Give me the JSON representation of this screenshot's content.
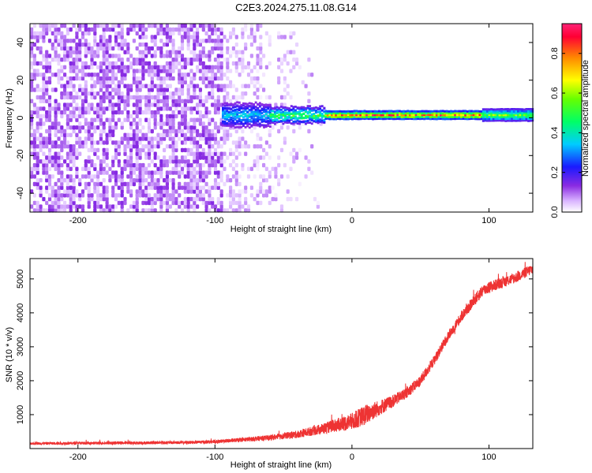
{
  "title": "C2E3.2024.275.11.08.G14",
  "chart_data": [
    {
      "type": "heatmap",
      "xlabel": "Height of straight line (km)",
      "ylabel": "Frequency (Hz)",
      "xlim": [
        -235,
        132
      ],
      "ylim": [
        -50,
        50
      ],
      "xticks": [
        -200,
        -100,
        0,
        100
      ],
      "yticks": [
        -40,
        -20,
        0,
        20,
        40
      ],
      "colorbar": {
        "label": "Normalized spectral amplitude",
        "range": [
          0,
          0.95
        ],
        "ticks": [
          0.0,
          0.2,
          0.4,
          0.6,
          0.8
        ],
        "tick_labels": [
          "0.0",
          "0.2",
          "0.4",
          "0.6",
          "0.8"
        ]
      },
      "noise_region": {
        "x_start": -235,
        "x_end": -20,
        "density_boundary": -95
      },
      "signal_band": {
        "center_frequency": 1.5,
        "x_start": -95,
        "x_end": 132,
        "segments": [
          {
            "x_from": -95,
            "x_to": -60,
            "half_width": 6,
            "amplitude": 0.25
          },
          {
            "x_from": -60,
            "x_to": -20,
            "half_width": 4,
            "amplitude": 0.4
          },
          {
            "x_from": -20,
            "x_to": 95,
            "half_width": 2,
            "amplitude": 0.7
          },
          {
            "x_from": 95,
            "x_to": 132,
            "half_width": 3,
            "amplitude": 0.45
          }
        ]
      },
      "grid": false
    },
    {
      "type": "line",
      "xlabel": "Height of straight line (km)",
      "ylabel": "SNR (10 * v/v)",
      "xlim": [
        -235,
        132
      ],
      "ylim": [
        0,
        5600
      ],
      "xticks": [
        -200,
        -100,
        0,
        100
      ],
      "yticks": [
        1000,
        2000,
        3000,
        4000,
        5000
      ],
      "line_color": "#ee3333",
      "series": [
        {
          "x": [
            -235,
            -200,
            -150,
            -120,
            -100,
            -80,
            -60,
            -40,
            -20,
            0,
            10,
            20,
            30,
            40,
            50,
            60,
            70,
            80,
            90,
            95,
            100,
            110,
            120,
            132
          ],
          "y": [
            150,
            160,
            170,
            180,
            200,
            260,
            320,
            420,
            600,
            800,
            1000,
            1200,
            1400,
            1650,
            2000,
            2600,
            3300,
            3900,
            4400,
            4650,
            4750,
            4900,
            5050,
            5300
          ],
          "noise_amplitude": [
            40,
            40,
            45,
            45,
            50,
            60,
            80,
            110,
            160,
            250,
            300,
            230,
            180,
            160,
            160,
            150,
            150,
            160,
            170,
            180,
            170,
            160,
            160,
            160
          ]
        }
      ],
      "grid": false
    }
  ]
}
